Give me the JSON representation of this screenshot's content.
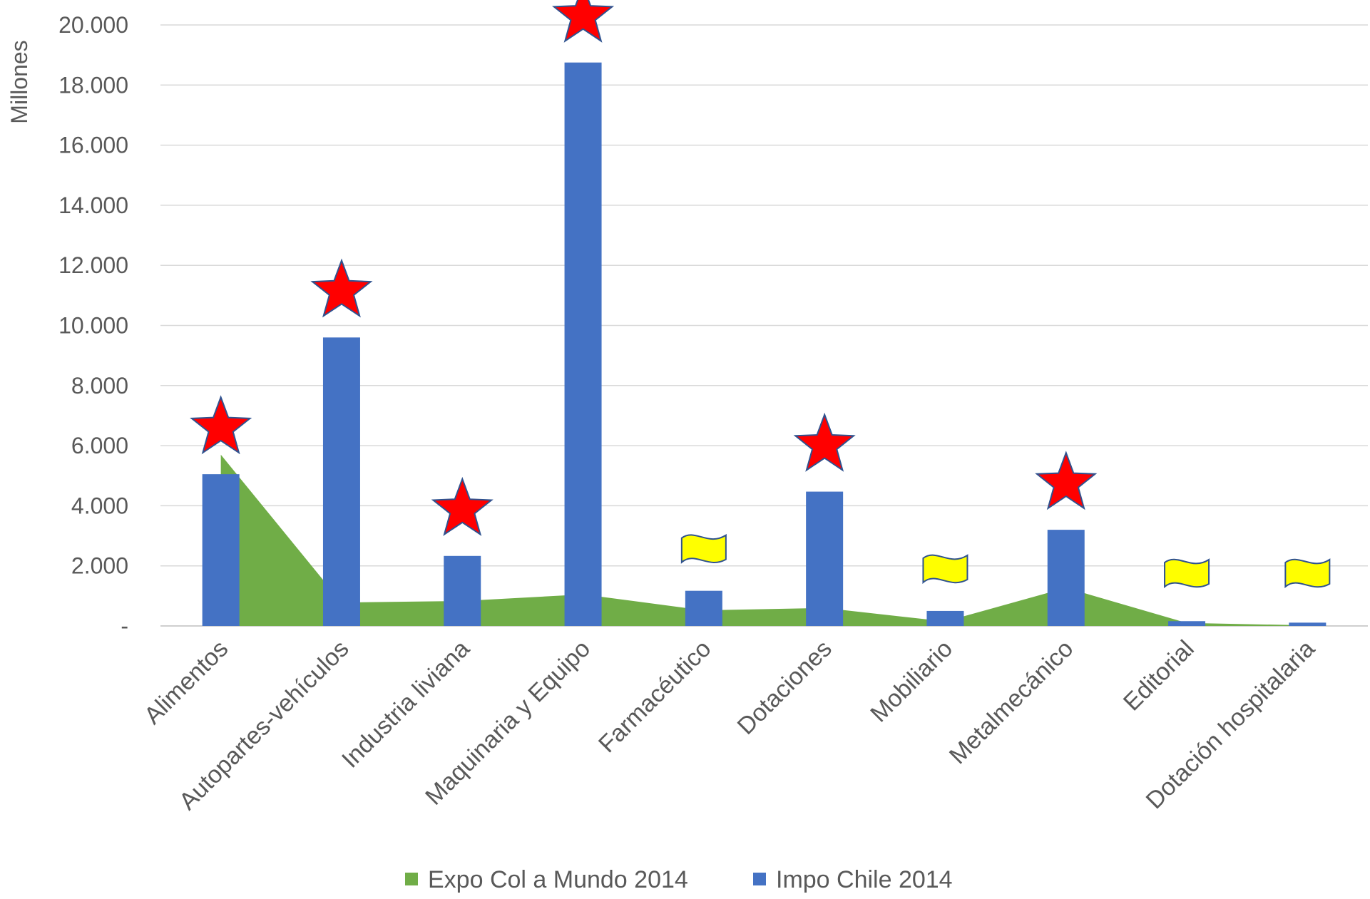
{
  "chart_data": {
    "type": "bar",
    "categories": [
      "Alimentos",
      "Autopartes-vehículos",
      "Industria liviana",
      "Maquinaria y Equipo",
      "Farmacéutico",
      "Dotaciones",
      "Mobiliario",
      "Metalmecánico",
      "Editorial",
      "Dotación hospitalaria"
    ],
    "series": [
      {
        "name": "Expo Col a Mundo 2014",
        "type": "area",
        "color": "#70AD47",
        "values": [
          5700,
          780,
          830,
          1050,
          520,
          600,
          150,
          1270,
          100,
          20
        ]
      },
      {
        "name": "Impo Chile 2014",
        "type": "bar",
        "color": "#4472C4",
        "values": [
          5050,
          9600,
          2330,
          18750,
          1170,
          4470,
          500,
          3200,
          160,
          110
        ]
      }
    ],
    "markers": [
      "star",
      "star",
      "star",
      "star",
      "flag",
      "star",
      "flag",
      "star",
      "flag",
      "flag"
    ],
    "marker_colors": {
      "star": "#FF0000",
      "flag": "#FFFF00"
    },
    "ylabel": "Millones",
    "ylim": [
      0,
      20000
    ],
    "yticks": [
      "-",
      "2.000",
      "4.000",
      "6.000",
      "8.000",
      "10.000",
      "12.000",
      "14.000",
      "16.000",
      "18.000",
      "20.000"
    ],
    "grid": true,
    "legend": "bottom"
  }
}
